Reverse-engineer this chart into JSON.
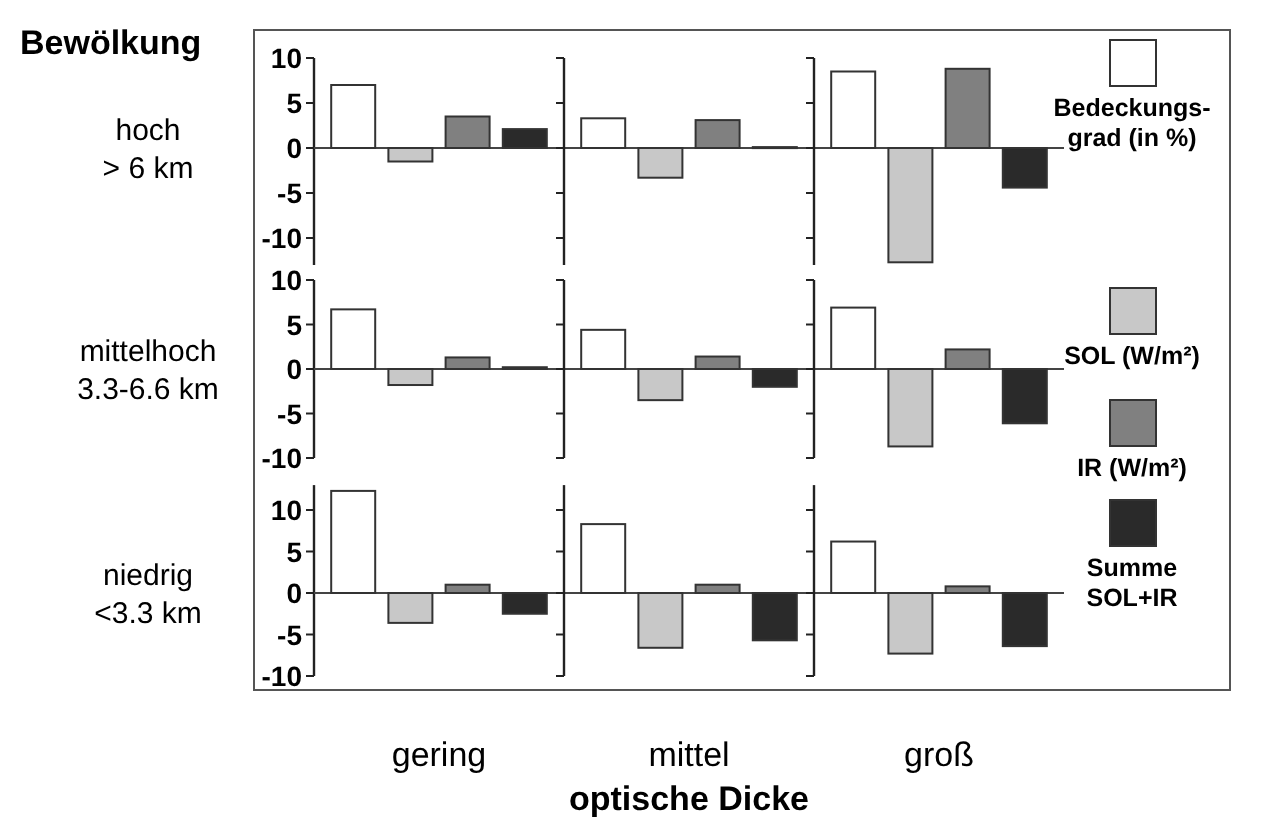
{
  "chart_data": [
    {
      "type": "bar",
      "title": "Bewölkung",
      "ylabel": "hoch\n> 6 km",
      "categories": [
        null,
        null,
        null
      ],
      "ylim": [
        -13,
        10
      ],
      "yticks": [
        -10,
        -5,
        0,
        5,
        10
      ],
      "legend": "right",
      "series": [
        {
          "name": "Bedeckungs-\ngrad (in %)",
          "color": "#ffffff",
          "values": [
            7.0,
            3.3,
            8.5
          ]
        },
        {
          "name": "SOL (W/m²)",
          "color": "#c8c8c8",
          "values": [
            -1.5,
            -3.3,
            -12.7
          ]
        },
        {
          "name": "IR (W/m²)",
          "color": "#808080",
          "values": [
            3.5,
            3.1,
            8.8
          ]
        },
        {
          "name": "Summe\nSOL+IR",
          "color": "#2a2a2a",
          "values": [
            2.1,
            0.1,
            -4.4
          ]
        }
      ]
    },
    {
      "type": "bar",
      "ylabel": "mittelhoch\n3.3-6.6 km",
      "categories": [
        null,
        null,
        null
      ],
      "ylim": [
        -10,
        10
      ],
      "yticks": [
        -10,
        -5,
        0,
        5,
        10
      ],
      "series": [
        {
          "color": "#ffffff",
          "values": [
            6.7,
            4.4,
            6.9
          ]
        },
        {
          "color": "#c8c8c8",
          "values": [
            -1.8,
            -3.5,
            -8.7
          ]
        },
        {
          "color": "#808080",
          "values": [
            1.3,
            1.4,
            2.2
          ]
        },
        {
          "color": "#2a2a2a",
          "values": [
            0.2,
            -2.0,
            -6.1
          ]
        }
      ]
    },
    {
      "type": "bar",
      "ylabel": "niedrig\n<3.3 km",
      "xlabel": "optische Dicke",
      "categories": [
        "gering",
        "mittel",
        "groß"
      ],
      "ylim": [
        -10,
        13
      ],
      "yticks": [
        -10,
        -5,
        0,
        5,
        10
      ],
      "series": [
        {
          "color": "#ffffff",
          "values": [
            12.3,
            8.3,
            6.2
          ]
        },
        {
          "color": "#c8c8c8",
          "values": [
            -3.6,
            -6.6,
            -7.3
          ]
        },
        {
          "color": "#808080",
          "values": [
            1.0,
            1.0,
            0.8
          ]
        },
        {
          "color": "#2a2a2a",
          "values": [
            -2.5,
            -5.7,
            -6.4
          ]
        }
      ]
    }
  ]
}
